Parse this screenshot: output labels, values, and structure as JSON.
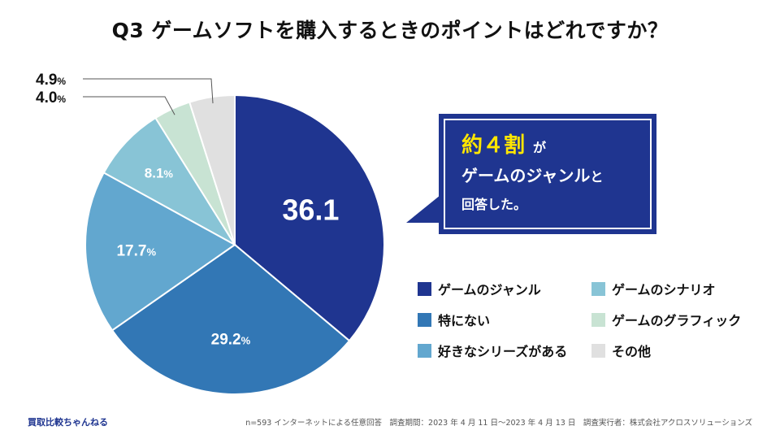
{
  "title": "Q3  ゲームソフトを購入するときのポイントはどれですか？",
  "chart_data": {
    "type": "pie",
    "title": "Q3  ゲームソフトを購入するときのポイントはどれですか？",
    "start_angle_deg": 0,
    "direction": "clockwise",
    "slices": [
      {
        "name": "ゲームのジャンル",
        "value": 36.1,
        "label": "36.1",
        "unit": "",
        "color": "#1f3590"
      },
      {
        "name": "特にない",
        "value": 29.2,
        "label": "29.2",
        "unit": "%",
        "color": "#3277b5"
      },
      {
        "name": "好きなシリーズがある",
        "value": 17.7,
        "label": "17.7",
        "unit": "%",
        "color": "#62a7cf"
      },
      {
        "name": "ゲームのシナリオ",
        "value": 8.1,
        "label": "8.1",
        "unit": "%",
        "color": "#88c4d6"
      },
      {
        "name": "ゲームのグラフィック",
        "value": 4.0,
        "label": "4.0",
        "unit": "%",
        "color": "#c8e3d3"
      },
      {
        "name": "その他",
        "value": 4.9,
        "label": "4.9",
        "unit": "%",
        "color": "#e0e0e0"
      }
    ]
  },
  "callout": {
    "highlight": "約４割",
    "small": "が",
    "line2_main": "ゲームのジャンル",
    "line2_small": "と",
    "line3": "回答した。"
  },
  "legend": [
    {
      "label": "ゲームのジャンル",
      "color": "#1f3590"
    },
    {
      "label": "特にない",
      "color": "#3277b5"
    },
    {
      "label": "好きなシリーズがある",
      "color": "#62a7cf"
    },
    {
      "label": "ゲームのシナリオ",
      "color": "#88c4d6"
    },
    {
      "label": "ゲームのグラフィック",
      "color": "#c8e3d3"
    },
    {
      "label": "その他",
      "color": "#e0e0e0"
    }
  ],
  "footer": {
    "brand": "買取比較ちゃんねる",
    "note": "n=593 インターネットによる任意回答　調査期間：2023 年 4 月 11 日〜2023 年 4 月 13 日　調査実行者：株式会社アクロスソリューションズ"
  }
}
